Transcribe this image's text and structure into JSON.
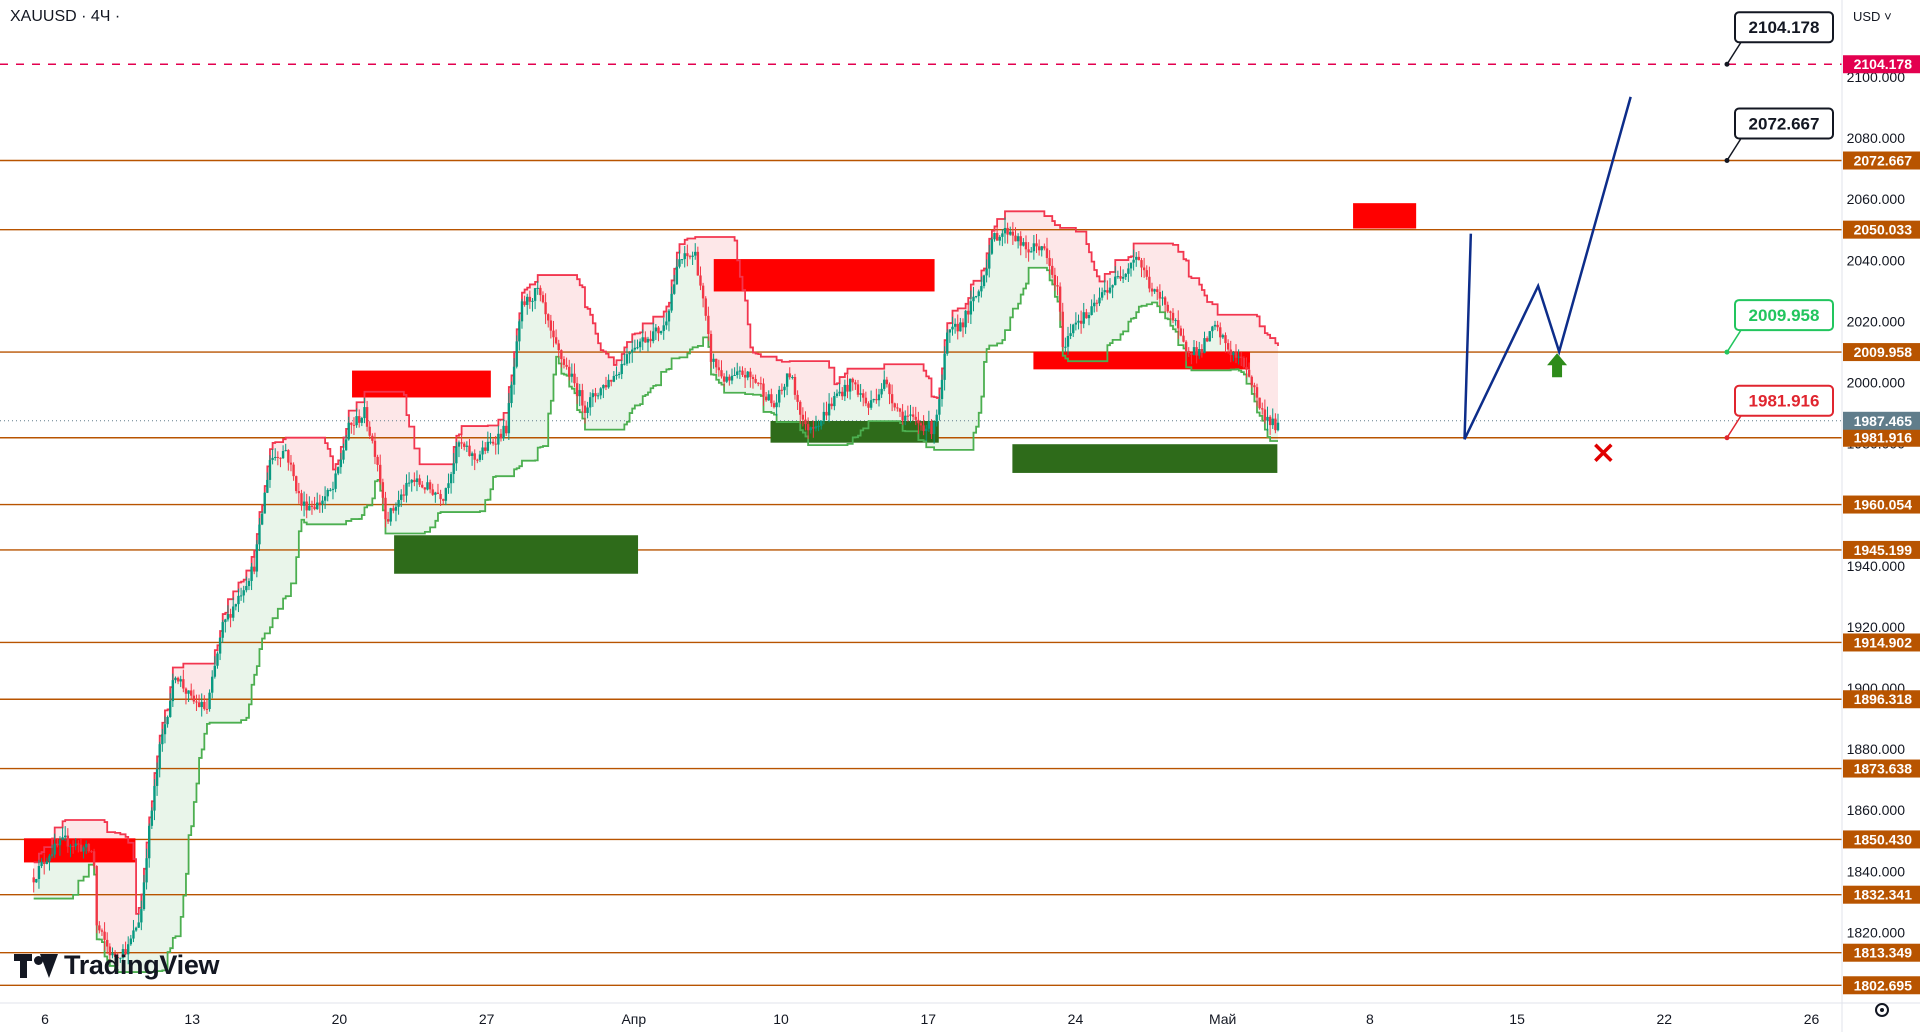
{
  "app": {
    "symbol_label": "XAUUSD · 4Ч ·",
    "currency_label": "USD",
    "logo_text": "TradingView",
    "icons": [
      "tradingview-logo-icon",
      "chevron-down-icon",
      "settings-icon"
    ]
  },
  "colors": {
    "level_line": "#b85400",
    "price_tag_bg": "#b85400",
    "resistance_box": "#ff0000",
    "support_box": "#2e6b1a",
    "upper_band": "#f2364f",
    "lower_band": "#4caf50",
    "bull_candle": "#089981",
    "bear_candle": "#f23645",
    "forecast_path": "#0d2d8a",
    "target_dashed": "#e3004f",
    "current_price": "#607d8b"
  },
  "chart_data": {
    "type": "candlestick",
    "title": "XAUUSD · 4Ч ·",
    "currency": "USD",
    "ylim": [
      1800,
      2118
    ],
    "y_ticks": [
      "2100.000",
      "2080.000",
      "2060.000",
      "2040.000",
      "2020.000",
      "2000.000",
      "1980.000",
      "1960.000",
      "1940.000",
      "1920.000",
      "1900.000",
      "1880.000",
      "1860.000",
      "1840.000",
      "1820.000"
    ],
    "x_ticks": [
      "6",
      "13",
      "20",
      "27",
      "Апр",
      "10",
      "17",
      "24",
      "Май",
      "8",
      "15",
      "22",
      "26"
    ],
    "x_tick_index": [
      0,
      7,
      14,
      21,
      28,
      35,
      42,
      49,
      56,
      63,
      70,
      77,
      84
    ],
    "horizontal_levels": [
      "2072.667",
      "2050.033",
      "2009.958",
      "1981.916",
      "1960.054",
      "1945.199",
      "1914.902",
      "1896.318",
      "1873.638",
      "1850.430",
      "1832.341",
      "1813.349",
      "1802.695"
    ],
    "horizontal_levels_values": [
      2072.667,
      2050.033,
      2009.958,
      1981.916,
      1960.054,
      1945.199,
      1914.902,
      1896.318,
      1873.638,
      1850.43,
      1832.341,
      1813.349,
      1802.695
    ],
    "target_level": {
      "label": "2104.178",
      "value": 2104.178
    },
    "current_price": {
      "label": "1987.465",
      "value": 1987.465
    },
    "callouts": [
      {
        "label": "2104.178",
        "value": 2104.178,
        "style": "dark"
      },
      {
        "label": "2072.667",
        "value": 2072.667,
        "style": "dark"
      },
      {
        "label": "2009.958",
        "value": 2009.958,
        "style": "green"
      },
      {
        "label": "1981.916",
        "value": 1981.916,
        "style": "red"
      }
    ],
    "forecast_path": [
      [
        67.5,
        1981.4
      ],
      [
        71.0,
        2031.6
      ],
      [
        72.0,
        2010.1
      ],
      [
        75.4,
        2093.5
      ]
    ],
    "down_trend_line": [
      [
        67.8,
        2048.7
      ],
      [
        67.5,
        1981.4
      ]
    ],
    "signal_up_arrow": {
      "day": 71.9,
      "value": 2005
    },
    "signal_cross": {
      "day": 74.1,
      "value": 1977
    },
    "resistance_boxes": [
      {
        "x0": -1.0,
        "x1": 4.3,
        "y0": 1850.8,
        "y1": 1842.9
      },
      {
        "x0": 14.6,
        "x1": 21.2,
        "y0": 2003.9,
        "y1": 1995.1
      },
      {
        "x0": 31.8,
        "x1": 42.3,
        "y0": 2040.4,
        "y1": 2029.8
      },
      {
        "x0": 47.0,
        "x1": 57.3,
        "y0": 2010.1,
        "y1": 2004.3
      },
      {
        "x0": 62.2,
        "x1": 65.2,
        "y0": 2058.7,
        "y1": 2050.4
      }
    ],
    "support_boxes": [
      {
        "x0": 16.6,
        "x1": 28.2,
        "y0": 1950.0,
        "y1": 1937.4
      },
      {
        "x0": 34.5,
        "x1": 42.5,
        "y0": 1987.4,
        "y1": 1980.3
      },
      {
        "x0": 46.0,
        "x1": 58.6,
        "y0": 1979.8,
        "y1": 1970.4
      }
    ]
  }
}
